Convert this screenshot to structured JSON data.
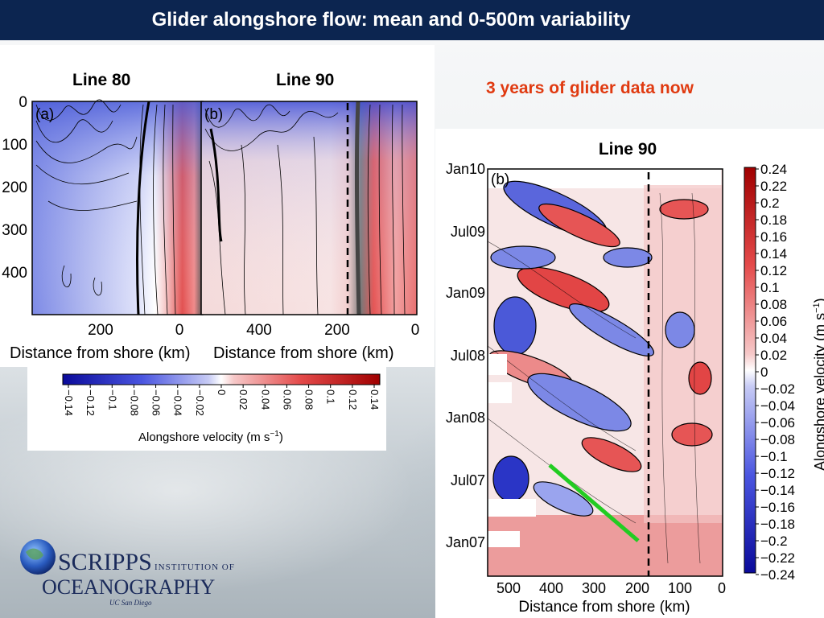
{
  "title": "Glider alongshore flow: mean and 0-500m variability",
  "note": "3 years of glider data now",
  "panel_a": {
    "heading": "Line 80",
    "label": "(a)",
    "y_ticks": [
      "0",
      "100",
      "200",
      "300",
      "400"
    ],
    "x_ticks": [
      "200",
      "0"
    ],
    "xlabel": "Distance from shore (km)"
  },
  "panel_b": {
    "heading": "Line 90",
    "label": "(b)",
    "x_ticks": [
      "400",
      "200",
      "0"
    ],
    "xlabel": "Distance from shore (km)"
  },
  "colorbar_left": {
    "ticks": [
      "−0.14",
      "−0.12",
      "−0.1",
      "−0.08",
      "−0.06",
      "−0.04",
      "−0.02",
      "0",
      "0.02",
      "0.04",
      "0.06",
      "0.08",
      "0.1",
      "0.12",
      "0.14"
    ],
    "label": "Alongshore velocity (m s",
    "unit_sup": "−1",
    "label_end": ")"
  },
  "timeseries": {
    "heading": "Line 90",
    "label": "(b)",
    "y_ticks": [
      "Jan10",
      "Jul09",
      "Jan09",
      "Jul08",
      "Jan08",
      "Jul07",
      "Jan07"
    ],
    "x_ticks": [
      "500",
      "400",
      "300",
      "200",
      "100",
      "0"
    ],
    "xlabel": "Distance from shore (km)"
  },
  "colorbar_right": {
    "ticks": [
      "0.24",
      "0.22",
      "0.2",
      "0.18",
      "0.16",
      "0.14",
      "0.12",
      "0.1",
      "0.08",
      "0.06",
      "0.04",
      "0.02",
      "0",
      "−0.02",
      "−0.04",
      "−0.06",
      "−0.08",
      "−0.1",
      "−0.12",
      "−0.14",
      "−0.16",
      "−0.18",
      "−0.2",
      "−0.22",
      "−0.24"
    ],
    "label": "Alongshore velocity (m s",
    "unit_sup": "−1",
    "label_end": ")"
  },
  "logo": {
    "line1": "SCRIPPS",
    "line1b": "INSTITUTION OF",
    "line2": "OCEANOGRAPHY",
    "line3": "UC San Diego"
  },
  "colors": {
    "title_bar": "#0c2550",
    "note": "#e03a10",
    "negative": "#2f3fd0",
    "positive": "#d02020",
    "glider_track": "#22cc22"
  },
  "chart_data": [
    {
      "type": "heatmap",
      "title": "Line 80",
      "panel": "(a)",
      "xlabel": "Distance from shore (km)",
      "ylabel": "",
      "xlim": [
        350,
        0
      ],
      "ylim": [
        500,
        0
      ],
      "x_ticks": [
        200,
        0
      ],
      "y_ticks": [
        0,
        100,
        200,
        300,
        400
      ],
      "color_range": [
        -0.14,
        0.14
      ],
      "colorbar_label": "Alongshore velocity (m s−1)",
      "pattern": "negative (equatorward) across most of section, strongest near surface offshore; positive (poleward) undercurrent within ~80 km of shore"
    },
    {
      "type": "heatmap",
      "title": "Line 90",
      "panel": "(b)",
      "xlabel": "Distance from shore (km)",
      "xlim": [
        500,
        0
      ],
      "ylim": [
        500,
        0
      ],
      "x_ticks": [
        400,
        200,
        0
      ],
      "color_range": [
        -0.14,
        0.14
      ],
      "colorbar_label": "Alongshore velocity (m s−1)",
      "pattern": "negative near surface offshore (>300 km), weak positive at depth; strong positive band within ~100 km of shore"
    },
    {
      "type": "heatmap",
      "title": "Line 90",
      "panel": "(b)",
      "xlabel": "Distance from shore (km)",
      "xlim": [
        550,
        0
      ],
      "y_axis": "time",
      "y_ticks": [
        "Jan07",
        "Jul07",
        "Jan08",
        "Jul08",
        "Jan09",
        "Jul09",
        "Jan10"
      ],
      "color_range": [
        -0.24,
        0.24
      ],
      "colorbar_label": "Alongshore velocity (m s−1)",
      "pattern": "alternating positive/negative anomalies propagating offshore with time; green line marks an offshore-propagating feature from ~200 km (Jan07) to ~400 km (Jul07)"
    }
  ]
}
